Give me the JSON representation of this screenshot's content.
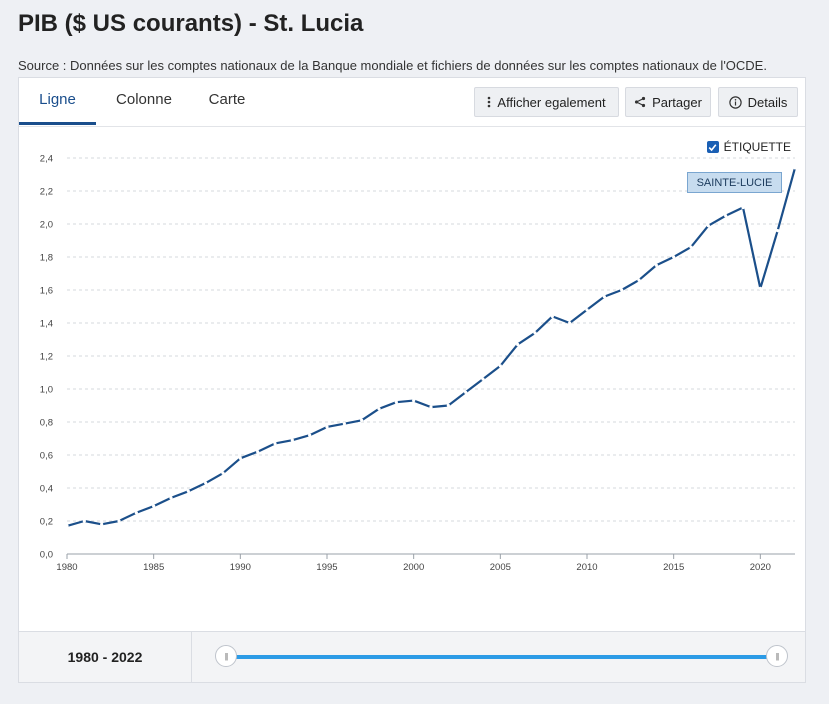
{
  "page": {
    "title": "PIB ($ US courants) - St. Lucia",
    "source": "Source : Données sur les comptes nationaux de la Banque mondiale et fichiers de données sur les comptes nationaux de l'OCDE."
  },
  "tabs": [
    {
      "label": "Ligne",
      "active": true
    },
    {
      "label": "Colonne",
      "active": false
    },
    {
      "label": "Carte",
      "active": false
    }
  ],
  "toolbar": {
    "also_show": "Afficher egalement",
    "share": "Partager",
    "details": "Details"
  },
  "label_toggle": {
    "text": "ÉTIQUETTE",
    "checked": true
  },
  "series_tag": "SAINTE-LUCIE",
  "footer": {
    "range_label": "1980 - 2022",
    "range_start": 1980,
    "range_end": 2022
  },
  "colors": {
    "series": "#1b4f8a",
    "accent": "#1a4e8c",
    "slider": "#2c9be6"
  },
  "chart_data": {
    "type": "line",
    "title": "",
    "xlabel": "",
    "ylabel": "",
    "xlim": [
      1980,
      2022
    ],
    "ylim": [
      0,
      2.4
    ],
    "x_ticks": [
      1980,
      1985,
      1990,
      1995,
      2000,
      2005,
      2010,
      2015,
      2020
    ],
    "x_tick_labels": [
      "1980",
      "1985",
      "1990",
      "1995",
      "2000",
      "2005",
      "2010",
      "2015",
      "2020"
    ],
    "y_ticks": [
      0,
      0.2,
      0.4,
      0.6,
      0.8,
      1.0,
      1.2,
      1.4,
      1.6,
      1.8,
      2.0,
      2.2,
      2.4
    ],
    "y_tick_labels": [
      "0,0",
      "0,2",
      "0,4",
      "0,6",
      "0,8",
      "1,0",
      "1,2",
      "1,4",
      "1,6",
      "1,8",
      "2,0",
      "2,2",
      "2,4"
    ],
    "grid": true,
    "series": [
      {
        "name": "SAINTE-LUCIE",
        "x": [
          1980,
          1981,
          1982,
          1983,
          1984,
          1985,
          1986,
          1987,
          1988,
          1989,
          1990,
          1991,
          1992,
          1993,
          1994,
          1995,
          1996,
          1997,
          1998,
          1999,
          2000,
          2001,
          2002,
          2003,
          2004,
          2005,
          2006,
          2007,
          2008,
          2009,
          2010,
          2011,
          2012,
          2013,
          2014,
          2015,
          2016,
          2017,
          2018,
          2019,
          2020,
          2021,
          2022
        ],
        "values": [
          0.17,
          0.2,
          0.18,
          0.2,
          0.25,
          0.29,
          0.34,
          0.38,
          0.43,
          0.49,
          0.58,
          0.62,
          0.67,
          0.69,
          0.72,
          0.77,
          0.79,
          0.81,
          0.88,
          0.92,
          0.93,
          0.89,
          0.9,
          0.98,
          1.06,
          1.14,
          1.27,
          1.34,
          1.44,
          1.4,
          1.48,
          1.56,
          1.6,
          1.66,
          1.75,
          1.8,
          1.86,
          1.99,
          2.05,
          2.1,
          1.61,
          1.96,
          2.34
        ]
      }
    ]
  }
}
